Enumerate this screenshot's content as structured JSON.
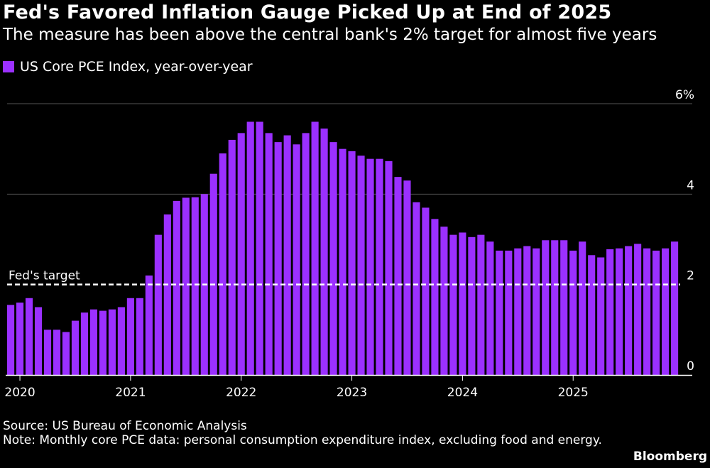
{
  "header": {
    "title": "Fed's Favored Inflation Gauge Picked Up at End of 2025",
    "subtitle": "The measure has been above the central bank's 2% target for almost five years"
  },
  "legend": {
    "label": "US Core PCE Index, year-over-year",
    "color": "#9b30ff"
  },
  "footer": {
    "source": "Source: US Bureau of Economic Analysis",
    "note": "Note: Monthly core PCE data: personal consumption expenditure index, excluding food and energy."
  },
  "brand": "Bloomberg",
  "chart_data": {
    "type": "bar",
    "title": "Fed's Favored Inflation Gauge Picked Up at End of 2025",
    "subtitle": "The measure has been above the central bank's 2% target for almost five years",
    "xlabel": "",
    "ylabel": "",
    "ylim": [
      0,
      6
    ],
    "yticks": [
      {
        "value": 0,
        "label": "0"
      },
      {
        "value": 2,
        "label": "2"
      },
      {
        "value": 4,
        "label": "4"
      },
      {
        "value": 6,
        "label": "6%"
      }
    ],
    "xticks": [
      {
        "index": 1,
        "label": "2020"
      },
      {
        "index": 13,
        "label": "2021"
      },
      {
        "index": 25,
        "label": "2022"
      },
      {
        "index": 37,
        "label": "2023"
      },
      {
        "index": 49,
        "label": "2024"
      },
      {
        "index": 61,
        "label": "2025"
      }
    ],
    "reference_line": {
      "value": 2,
      "label": "Fed's target"
    },
    "series": [
      {
        "name": "US Core PCE Index, year-over-year",
        "color": "#9b30ff",
        "start": "2019-12",
        "values": [
          1.55,
          1.6,
          1.7,
          1.5,
          1.0,
          1.0,
          0.95,
          1.2,
          1.38,
          1.45,
          1.42,
          1.45,
          1.5,
          1.7,
          1.7,
          2.2,
          3.1,
          3.55,
          3.85,
          3.92,
          3.93,
          4.0,
          4.45,
          4.9,
          5.2,
          5.35,
          5.6,
          5.6,
          5.35,
          5.15,
          5.3,
          5.1,
          5.35,
          5.6,
          5.45,
          5.15,
          5.0,
          4.95,
          4.85,
          4.78,
          4.78,
          4.73,
          4.38,
          4.3,
          3.82,
          3.7,
          3.45,
          3.28,
          3.1,
          3.15,
          3.05,
          3.1,
          2.95,
          2.75,
          2.75,
          2.8,
          2.85,
          2.8,
          2.98,
          2.98,
          2.98,
          2.75,
          2.95,
          2.65,
          2.6,
          2.78,
          2.8,
          2.85,
          2.9,
          2.8,
          2.75,
          2.8,
          2.95
        ]
      }
    ]
  }
}
